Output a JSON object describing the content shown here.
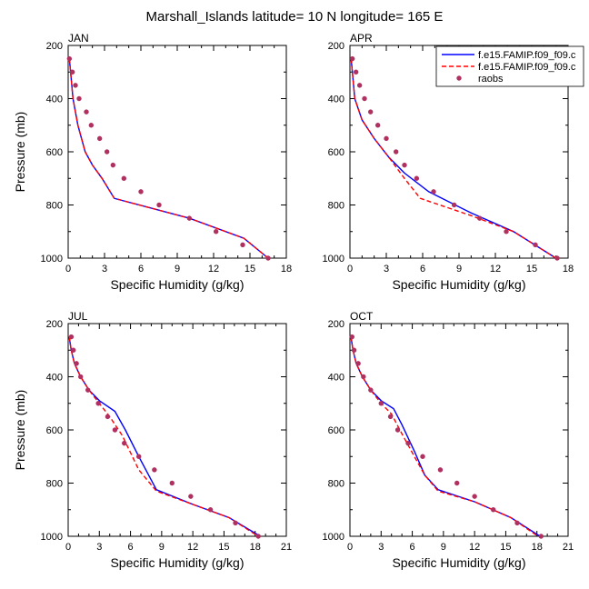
{
  "title": "Marshall_Islands  latitude= 10 N longitude= 165 E",
  "ylabel": "Pressure (mb)",
  "xlabel": "Specific Humidity (g/kg)",
  "legend": {
    "placement": "top-right of APR panel",
    "entries": [
      {
        "label": "f.e15.FAMIP.f09_f09.c",
        "color": "#0000ff",
        "style": "solid"
      },
      {
        "label": "f.e15.FAMIP.f09_f09.c",
        "color": "#ff0000",
        "style": "dashed"
      },
      {
        "label": "raobs",
        "color": "#b03060",
        "style": "dot"
      }
    ]
  },
  "chart_data": [
    {
      "type": "line",
      "panel": "JAN",
      "xlim": [
        0,
        18
      ],
      "xticks": [
        0,
        3,
        6,
        9,
        12,
        15,
        18
      ],
      "ylim": [
        1000,
        200
      ],
      "yticks": [
        200,
        400,
        600,
        800,
        1000
      ],
      "series": [
        {
          "name": "f.e15.FAMIP.f09_f09.c",
          "color": "#0000ff",
          "style": "solid",
          "x": [
            0.1,
            0.2,
            0.4,
            0.8,
            1.4,
            2.0,
            2.8,
            3.8,
            10.0,
            14.5,
            16.5
          ],
          "y": [
            250,
            300,
            400,
            500,
            600,
            650,
            700,
            775,
            850,
            925,
            1000
          ]
        },
        {
          "name": "f.e15.FAMIP.f09_f09.c",
          "color": "#ff0000",
          "style": "dashed",
          "x": [
            0.1,
            0.2,
            0.4,
            0.8,
            1.4,
            2.0,
            2.8,
            3.8,
            10.0,
            14.5,
            16.5
          ],
          "y": [
            250,
            300,
            400,
            500,
            600,
            650,
            700,
            775,
            850,
            925,
            1000
          ]
        },
        {
          "name": "raobs",
          "color": "#b03060",
          "style": "dot",
          "x": [
            0.1,
            0.35,
            0.6,
            0.9,
            1.5,
            1.9,
            2.6,
            3.2,
            3.7,
            4.6,
            6.0,
            7.5,
            10.0,
            12.2,
            14.4,
            16.5
          ],
          "y": [
            250,
            300,
            350,
            400,
            450,
            500,
            550,
            600,
            650,
            700,
            750,
            800,
            850,
            900,
            950,
            1000
          ]
        }
      ]
    },
    {
      "type": "line",
      "panel": "APR",
      "xlim": [
        0,
        18
      ],
      "xticks": [
        0,
        3,
        6,
        9,
        12,
        15,
        18
      ],
      "ylim": [
        1000,
        200
      ],
      "yticks": [
        200,
        400,
        600,
        800,
        1000
      ],
      "series": [
        {
          "name": "f.e15.FAMIP.f09_f09.c",
          "color": "#0000ff",
          "style": "solid",
          "x": [
            0.1,
            0.2,
            0.4,
            1.0,
            2.0,
            3.2,
            4.5,
            6.5,
            10.0,
            13.5,
            17.0
          ],
          "y": [
            250,
            300,
            400,
            480,
            550,
            620,
            680,
            750,
            830,
            900,
            1000
          ]
        },
        {
          "name": "f.e15.FAMIP.f09_f09.c",
          "color": "#ff0000",
          "style": "dashed",
          "x": [
            0.1,
            0.2,
            0.4,
            1.0,
            2.0,
            3.2,
            4.5,
            5.8,
            10.0,
            13.5,
            17.0
          ],
          "y": [
            250,
            300,
            400,
            480,
            550,
            620,
            700,
            775,
            840,
            900,
            1000
          ]
        },
        {
          "name": "raobs",
          "color": "#b03060",
          "style": "dot",
          "x": [
            0.2,
            0.5,
            0.8,
            1.2,
            1.7,
            2.3,
            3.0,
            3.8,
            4.5,
            5.5,
            6.9,
            8.6,
            10.7,
            12.9,
            15.3,
            17.1
          ],
          "y": [
            250,
            300,
            350,
            400,
            450,
            500,
            550,
            600,
            650,
            700,
            750,
            800,
            850,
            900,
            950,
            1000
          ]
        }
      ]
    },
    {
      "type": "line",
      "panel": "JUL",
      "xlim": [
        0,
        21
      ],
      "xticks": [
        0,
        3,
        6,
        9,
        12,
        15,
        18,
        21
      ],
      "ylim": [
        1000,
        200
      ],
      "yticks": [
        200,
        400,
        600,
        800,
        1000
      ],
      "series": [
        {
          "name": "f.e15.FAMIP.f09_f09.c",
          "color": "#0000ff",
          "style": "solid",
          "x": [
            0.1,
            0.3,
            0.6,
            1.2,
            2.0,
            3.0,
            4.5,
            5.5,
            6.8,
            8.5,
            12.0,
            15.5,
            18.5
          ],
          "y": [
            250,
            300,
            350,
            400,
            450,
            490,
            530,
            600,
            700,
            825,
            880,
            930,
            1000
          ]
        },
        {
          "name": "f.e15.FAMIP.f09_f09.c",
          "color": "#ff0000",
          "style": "dashed",
          "x": [
            0.1,
            0.3,
            0.6,
            1.2,
            2.0,
            3.0,
            4.0,
            5.2,
            6.8,
            8.5,
            12.0,
            15.5,
            18.3
          ],
          "y": [
            250,
            300,
            350,
            400,
            450,
            500,
            550,
            620,
            750,
            830,
            880,
            930,
            1000
          ]
        },
        {
          "name": "raobs",
          "color": "#b03060",
          "style": "dot",
          "x": [
            0.3,
            0.5,
            0.8,
            1.2,
            1.9,
            2.9,
            3.8,
            4.5,
            5.4,
            6.8,
            8.3,
            10.0,
            11.8,
            13.7,
            16.1,
            18.3
          ],
          "y": [
            250,
            300,
            350,
            400,
            450,
            500,
            550,
            600,
            650,
            700,
            750,
            800,
            850,
            900,
            950,
            1000
          ]
        }
      ]
    },
    {
      "type": "line",
      "panel": "OCT",
      "xlim": [
        0,
        21
      ],
      "xticks": [
        0,
        3,
        6,
        9,
        12,
        15,
        18,
        21
      ],
      "ylim": [
        1000,
        200
      ],
      "yticks": [
        200,
        400,
        600,
        800,
        1000
      ],
      "series": [
        {
          "name": "f.e15.FAMIP.f09_f09.c",
          "color": "#0000ff",
          "style": "solid",
          "x": [
            0.1,
            0.3,
            0.6,
            1.2,
            2.0,
            3.0,
            4.2,
            5.0,
            6.2,
            7.2,
            8.5,
            12.0,
            15.5,
            18.3
          ],
          "y": [
            250,
            300,
            350,
            400,
            450,
            490,
            520,
            580,
            680,
            770,
            825,
            870,
            930,
            1000
          ]
        },
        {
          "name": "f.e15.FAMIP.f09_f09.c",
          "color": "#ff0000",
          "style": "dashed",
          "x": [
            0.1,
            0.3,
            0.6,
            1.2,
            2.0,
            3.0,
            4.0,
            4.8,
            6.2,
            7.2,
            8.5,
            12.0,
            15.5,
            18.1
          ],
          "y": [
            250,
            300,
            350,
            400,
            450,
            500,
            540,
            600,
            700,
            770,
            830,
            870,
            930,
            1000
          ]
        },
        {
          "name": "raobs",
          "color": "#b03060",
          "style": "dot",
          "x": [
            0.2,
            0.4,
            0.8,
            1.3,
            2.0,
            3.0,
            3.9,
            4.6,
            5.6,
            7.0,
            8.7,
            10.3,
            12.0,
            13.8,
            16.1,
            18.4
          ],
          "y": [
            250,
            300,
            350,
            400,
            450,
            500,
            550,
            600,
            650,
            700,
            750,
            800,
            850,
            900,
            950,
            1000
          ]
        }
      ]
    }
  ]
}
